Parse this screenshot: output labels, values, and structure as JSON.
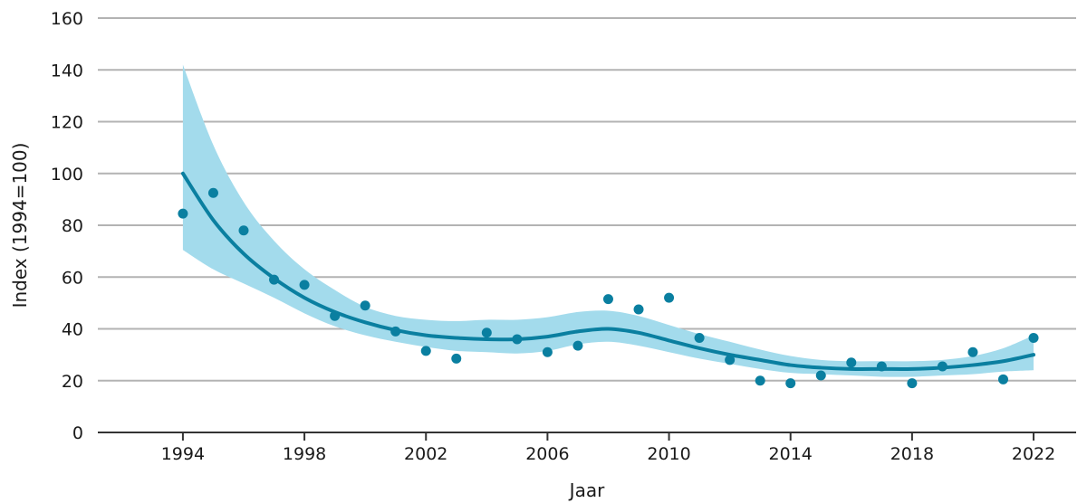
{
  "chart_data": {
    "type": "line",
    "xlabel": "Jaar",
    "ylabel": "Index (1994=100)",
    "xlim": [
      1991.2,
      2023.4
    ],
    "ylim": [
      0,
      160
    ],
    "x_ticks": [
      1994,
      1998,
      2002,
      2006,
      2010,
      2014,
      2018,
      2022
    ],
    "y_ticks": [
      0,
      20,
      40,
      60,
      80,
      100,
      120,
      140,
      160
    ],
    "grid": true,
    "colors": {
      "trend": "#0a7fa0",
      "band": "#a3dbec",
      "points": "#0a7fa0",
      "grid": "#b3b3b3"
    },
    "series": [
      {
        "kind": "scatter",
        "x": [
          1994,
          1995,
          1996,
          1997,
          1998,
          1999,
          2000,
          2001,
          2002,
          2003,
          2004,
          2005,
          2006,
          2007,
          2008,
          2009,
          2010,
          2011,
          2012,
          2013,
          2014,
          2015,
          2016,
          2017,
          2018,
          2019,
          2020,
          2021,
          2022
        ],
        "values": [
          84.5,
          92.5,
          78,
          59,
          57,
          45,
          49,
          39,
          31.5,
          28.5,
          38.5,
          36,
          31,
          33.5,
          51.5,
          47.5,
          52,
          36.5,
          28,
          20,
          19,
          22,
          27,
          25.5,
          19,
          25.5,
          31,
          20.5,
          36.5
        ]
      },
      {
        "kind": "trend",
        "x": [
          1994,
          1995,
          1996,
          1997,
          1998,
          1999,
          2000,
          2001,
          2002,
          2003,
          2004,
          2005,
          2006,
          2007,
          2008,
          2009,
          2010,
          2011,
          2012,
          2013,
          2014,
          2015,
          2016,
          2017,
          2018,
          2019,
          2020,
          2021,
          2022
        ],
        "values": [
          100,
          82,
          69,
          59.5,
          52,
          46.5,
          42.5,
          39.5,
          37.5,
          36.5,
          36,
          36,
          37,
          39,
          40,
          38.5,
          35.5,
          32.5,
          30,
          28,
          26,
          25,
          24.5,
          24.5,
          24.5,
          25,
          26,
          27.5,
          30
        ],
        "lower": [
          70.5,
          63,
          57.5,
          52,
          46,
          41,
          37.5,
          35,
          33,
          31.5,
          31,
          30.5,
          31.5,
          34,
          35,
          33.5,
          31,
          28.5,
          26.5,
          24.5,
          23,
          22.5,
          22,
          21.5,
          21.5,
          22,
          22.5,
          23.5,
          24
        ],
        "upper": [
          142,
          111,
          89,
          74,
          63,
          55,
          48.5,
          45,
          43.5,
          43,
          43.5,
          43.5,
          44.5,
          46.5,
          47,
          45,
          41.5,
          38,
          35,
          32,
          29.5,
          28,
          27.5,
          27.5,
          27.5,
          28,
          29.5,
          32.5,
          37.5
        ]
      }
    ]
  }
}
